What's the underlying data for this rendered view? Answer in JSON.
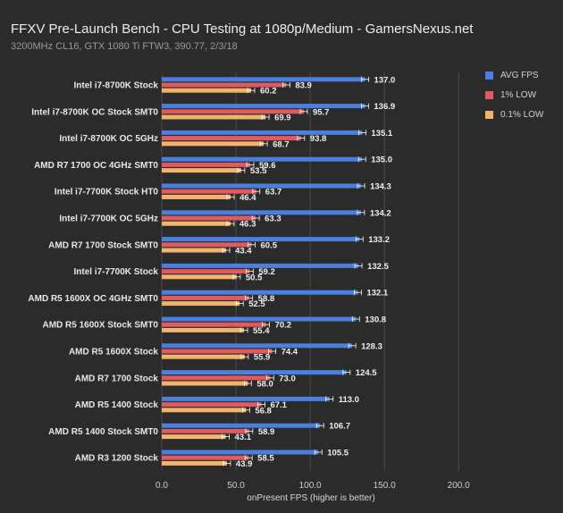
{
  "title": "FFXV Pre-Launch Bench - CPU Testing at 1080p/Medium - GamersNexus.net",
  "subtitle": "3200MHz CL16, GTX 1080 Ti FTW3, 390.77, 2/3/18",
  "legend": [
    {
      "label": "AVG FPS",
      "color": "#4a7fe0"
    },
    {
      "label": "1% LOW",
      "color": "#e05a5e"
    },
    {
      "label": "0.1% LOW",
      "color": "#f0b46c"
    }
  ],
  "chart_data": {
    "type": "bar",
    "orientation": "horizontal",
    "xlabel": "onPresent FPS (higher is better)",
    "xlim": [
      0,
      200
    ],
    "xticks": [
      0,
      50,
      100,
      150,
      200
    ],
    "xtick_labels": [
      "0.0",
      "50.0",
      "100.0",
      "150.0",
      "200.0"
    ],
    "grid": true,
    "legend_position": "right",
    "categories": [
      "Intel i7-8700K Stock",
      "Intel i7-8700K OC Stock SMT0",
      "Intel i7-8700K OC 5GHz",
      "AMD R7 1700 OC 4GHz SMT0",
      "Intel i7-7700K Stock HT0",
      "Intel i7-7700K OC 5GHz",
      "AMD R7 1700 Stock SMT0",
      "Intel i7-7700K Stock",
      "AMD R5 1600X OC 4GHz SMT0",
      "AMD R5 1600X Stock SMT0",
      "AMD R5 1600X Stock",
      "AMD R7 1700 Stock",
      "AMD R5 1400 Stock",
      "AMD R5 1400 Stock SMT0",
      "AMD R3 1200 Stock"
    ],
    "series": [
      {
        "name": "AVG FPS",
        "color": "#4a7fe0",
        "values": [
          137.0,
          136.9,
          135.1,
          135.0,
          134.3,
          134.2,
          133.2,
          132.5,
          132.1,
          130.8,
          128.3,
          124.5,
          113.0,
          106.7,
          105.5
        ],
        "labels": [
          "137.0",
          "136.9",
          "135.1",
          "135.0",
          "134.3",
          "134.2",
          "133.2",
          "132.5",
          "132.1",
          "130.8",
          "128.3",
          "124.5",
          "113.0",
          "106.7",
          "105.5"
        ]
      },
      {
        "name": "1% LOW",
        "color": "#e05a5e",
        "values": [
          83.9,
          95.7,
          93.8,
          59.6,
          63.7,
          63.3,
          60.5,
          59.2,
          58.8,
          70.2,
          74.4,
          73.0,
          67.1,
          58.9,
          58.5
        ],
        "labels": [
          "83.9",
          "95.7",
          "93.8",
          "59.6",
          "63.7",
          "63.3",
          "60.5",
          "59.2",
          "58.8",
          "70.2",
          "74.4",
          "73.0",
          "67.1",
          "58.9",
          "58.5"
        ]
      },
      {
        "name": "0.1% LOW",
        "color": "#f0b46c",
        "values": [
          60.2,
          69.9,
          68.7,
          53.5,
          46.4,
          46.3,
          43.4,
          50.5,
          52.5,
          55.4,
          55.9,
          58.0,
          56.8,
          43.1,
          43.9
        ],
        "labels": [
          "60.2",
          "69.9",
          "68.7",
          "53.5",
          "46.4",
          "46.3",
          "43.4",
          "50.5",
          "52.5",
          "55.4",
          "55.9",
          "58.0",
          "56.8",
          "43.1",
          "43.9"
        ]
      }
    ]
  }
}
